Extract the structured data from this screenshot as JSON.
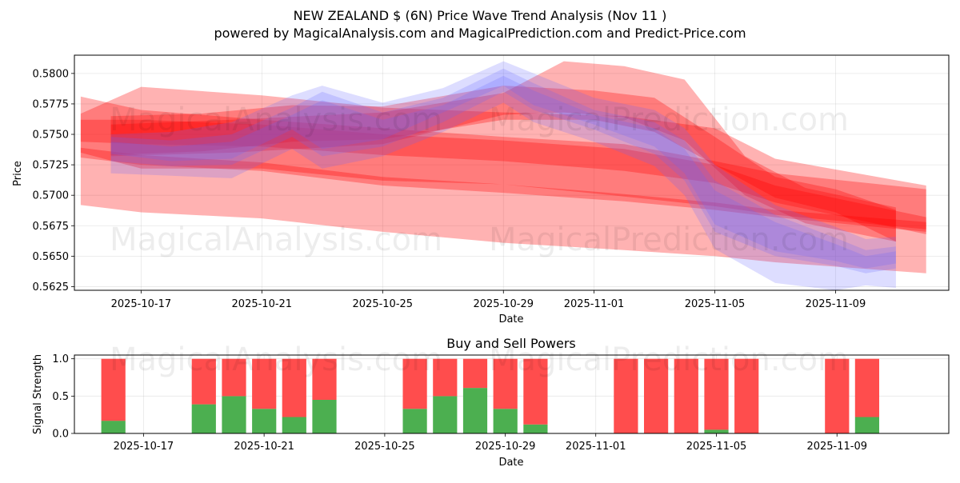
{
  "title": "NEW ZEALAND $ (6N) Price Wave Trend Analysis (Nov 11 )",
  "subtitle": "powered by MagicalAnalysis.com and MagicalPrediction.com and Predict-Price.com",
  "watermarks": [
    "MagicalAnalysis.com",
    "MagicalPrediction.com"
  ],
  "colors": {
    "buy": "#4caf50",
    "sell": "#ff4d4d",
    "red_band": "#ff0000",
    "blue_band": "#6666ff"
  },
  "chart_data": [
    {
      "type": "area",
      "title": "",
      "xlabel": "Date",
      "ylabel": "Price",
      "ylim": [
        0.5622,
        0.5815
      ],
      "xlim": [
        "2025-10-14 19:00",
        "2025-11-12 18:00"
      ],
      "yticks": [
        "0.5625",
        "0.5650",
        "0.5675",
        "0.5700",
        "0.5725",
        "0.5750",
        "0.5775",
        "0.5800"
      ],
      "xticks": [
        "2025-10-17",
        "2025-10-21",
        "2025-10-25",
        "2025-10-29",
        "2025-11-01",
        "2025-11-05",
        "2025-11-09"
      ],
      "series": [
        {
          "name": "red-band-1",
          "color": "#ff0000",
          "dates": [
            "2025-10-15",
            "2025-10-17",
            "2025-10-21",
            "2025-10-25",
            "2025-10-29",
            "2025-11-02",
            "2025-11-05",
            "2025-11-07",
            "2025-11-12"
          ],
          "lower": [
            0.5692,
            0.5686,
            0.5681,
            0.567,
            0.5661,
            0.5655,
            0.565,
            0.5645,
            0.5636
          ],
          "upper": [
            0.5767,
            0.5789,
            0.5782,
            0.5772,
            0.5768,
            0.5765,
            0.5755,
            0.573,
            0.5708
          ]
        },
        {
          "name": "red-band-2",
          "color": "#ff0000",
          "dates": [
            "2025-10-15",
            "2025-10-17",
            "2025-10-21",
            "2025-10-25",
            "2025-10-29",
            "2025-11-02",
            "2025-11-05",
            "2025-11-07",
            "2025-11-12"
          ],
          "lower": [
            0.5735,
            0.5722,
            0.5722,
            0.5712,
            0.5709,
            0.5699,
            0.5691,
            0.5684,
            0.5672
          ],
          "upper": [
            0.5781,
            0.577,
            0.5762,
            0.5755,
            0.5748,
            0.5742,
            0.5728,
            0.5718,
            0.5705
          ]
        },
        {
          "name": "red-band-3",
          "color": "#ff0000",
          "dates": [
            "2025-10-15",
            "2025-10-17",
            "2025-10-21",
            "2025-10-25",
            "2025-10-29",
            "2025-11-02",
            "2025-11-05",
            "2025-11-07",
            "2025-11-12"
          ],
          "lower": [
            0.5731,
            0.5725,
            0.572,
            0.5708,
            0.5702,
            0.5695,
            0.5688,
            0.5682,
            0.567
          ],
          "upper": [
            0.5739,
            0.5733,
            0.5727,
            0.5715,
            0.5709,
            0.5701,
            0.5694,
            0.5688,
            0.5678
          ]
        },
        {
          "name": "red-band-4",
          "color": "#ff0000",
          "dates": [
            "2025-10-15",
            "2025-10-17",
            "2025-10-21",
            "2025-10-25",
            "2025-10-29",
            "2025-11-02",
            "2025-11-05",
            "2025-11-07",
            "2025-11-12"
          ],
          "lower": [
            0.5744,
            0.5742,
            0.574,
            0.5733,
            0.5728,
            0.572,
            0.571,
            0.5694,
            0.5668
          ],
          "upper": [
            0.5762,
            0.5762,
            0.5758,
            0.575,
            0.5745,
            0.5738,
            0.5725,
            0.5708,
            0.5682
          ]
        },
        {
          "name": "red-band-5",
          "color": "#ff0000",
          "dates": [
            "2025-10-16",
            "2025-10-19",
            "2025-10-22",
            "2025-10-25",
            "2025-10-29",
            "2025-11-01",
            "2025-11-03",
            "2025-11-05",
            "2025-11-07",
            "2025-11-09",
            "2025-11-11"
          ],
          "lower": [
            0.5733,
            0.5736,
            0.5744,
            0.5746,
            0.5762,
            0.5762,
            0.5752,
            0.5725,
            0.5698,
            0.5686,
            0.5662
          ],
          "upper": [
            0.5765,
            0.5767,
            0.5774,
            0.5773,
            0.579,
            0.5786,
            0.578,
            0.5748,
            0.5715,
            0.5705,
            0.5688
          ]
        },
        {
          "name": "red-band-6",
          "color": "#ff0000",
          "dates": [
            "2025-10-16",
            "2025-10-20",
            "2025-10-25",
            "2025-10-29",
            "2025-10-31",
            "2025-11-02",
            "2025-11-04",
            "2025-11-06",
            "2025-11-08",
            "2025-11-11"
          ],
          "lower": [
            0.5732,
            0.5735,
            0.5742,
            0.5766,
            0.5768,
            0.5764,
            0.5745,
            0.57,
            0.5677,
            0.5662
          ],
          "upper": [
            0.5758,
            0.5762,
            0.5768,
            0.5784,
            0.581,
            0.5806,
            0.5795,
            0.5732,
            0.5706,
            0.569
          ]
        },
        {
          "name": "blue-band-1",
          "color": "#6666ff",
          "dates": [
            "2025-10-16",
            "2025-10-18",
            "2025-10-20",
            "2025-10-22",
            "2025-10-23",
            "2025-10-25",
            "2025-10-27",
            "2025-10-29",
            "2025-10-30",
            "2025-11-01",
            "2025-11-03",
            "2025-11-04",
            "2025-11-05",
            "2025-11-07",
            "2025-11-09",
            "2025-11-10",
            "2025-11-11"
          ],
          "lower": [
            0.5728,
            0.5724,
            0.5725,
            0.5748,
            0.5732,
            0.574,
            0.576,
            0.5785,
            0.577,
            0.5754,
            0.5734,
            0.5712,
            0.567,
            0.565,
            0.5642,
            0.5636,
            0.564
          ],
          "upper": [
            0.5748,
            0.5745,
            0.575,
            0.5772,
            0.5785,
            0.5768,
            0.578,
            0.5804,
            0.5792,
            0.577,
            0.576,
            0.5745,
            0.5712,
            0.5684,
            0.5665,
            0.5655,
            0.5658
          ]
        },
        {
          "name": "blue-band-2",
          "color": "#6666ff",
          "dates": [
            "2025-10-16",
            "2025-10-18",
            "2025-10-20",
            "2025-10-22",
            "2025-10-23",
            "2025-10-25",
            "2025-10-27",
            "2025-10-29",
            "2025-10-30",
            "2025-11-01",
            "2025-11-03",
            "2025-11-04",
            "2025-11-05",
            "2025-11-07",
            "2025-11-09",
            "2025-11-10",
            "2025-11-11"
          ],
          "lower": [
            0.5734,
            0.5728,
            0.573,
            0.5754,
            0.5738,
            0.5746,
            0.5768,
            0.579,
            0.5774,
            0.5758,
            0.574,
            0.5718,
            0.5676,
            0.5654,
            0.5646,
            0.564,
            0.5644
          ],
          "upper": [
            0.5744,
            0.574,
            0.5744,
            0.5766,
            0.5778,
            0.5762,
            0.5774,
            0.5798,
            0.5786,
            0.5766,
            0.5755,
            0.5738,
            0.5704,
            0.5678,
            0.566,
            0.565,
            0.5654
          ]
        },
        {
          "name": "blue-band-3",
          "color": "#6666ff",
          "dates": [
            "2025-10-16",
            "2025-10-18",
            "2025-10-20",
            "2025-10-22",
            "2025-10-23",
            "2025-10-25",
            "2025-10-27",
            "2025-10-29",
            "2025-10-30",
            "2025-11-01",
            "2025-11-03",
            "2025-11-04",
            "2025-11-05",
            "2025-11-07",
            "2025-11-09",
            "2025-11-10",
            "2025-11-11"
          ],
          "lower": [
            0.5718,
            0.5716,
            0.5714,
            0.5738,
            0.5722,
            0.5732,
            0.5752,
            0.5776,
            0.576,
            0.5744,
            0.5724,
            0.57,
            0.5656,
            0.5628,
            0.5622,
            0.5626,
            0.5624
          ],
          "upper": [
            0.575,
            0.5752,
            0.576,
            0.5782,
            0.579,
            0.5776,
            0.5788,
            0.581,
            0.58,
            0.578,
            0.577,
            0.5755,
            0.5725,
            0.5692,
            0.5674,
            0.5664,
            0.5666
          ]
        }
      ]
    },
    {
      "type": "bar",
      "title": "Buy and Sell Powers",
      "xlabel": "Date",
      "ylabel": "Signal Strength",
      "ylim": [
        0,
        1.05
      ],
      "yticks": [
        "0.0",
        "0.5",
        "1.0"
      ],
      "xticks": [
        "2025-10-17",
        "2025-10-21",
        "2025-10-25",
        "2025-10-29",
        "2025-11-01",
        "2025-11-05",
        "2025-11-09"
      ],
      "categories": [
        "2025-10-16",
        "2025-10-19",
        "2025-10-20",
        "2025-10-21",
        "2025-10-22",
        "2025-10-23",
        "2025-10-26",
        "2025-10-27",
        "2025-10-28",
        "2025-10-29",
        "2025-10-30",
        "2025-11-02",
        "2025-11-03",
        "2025-11-04",
        "2025-11-05",
        "2025-11-06",
        "2025-11-09",
        "2025-11-10"
      ],
      "series": [
        {
          "name": "Buy",
          "color": "#4caf50",
          "values": [
            0.17,
            0.39,
            0.5,
            0.33,
            0.22,
            0.45,
            0.33,
            0.5,
            0.61,
            0.33,
            0.12,
            0.0,
            0.0,
            0.0,
            0.05,
            0.0,
            0.0,
            0.22
          ]
        },
        {
          "name": "Sell",
          "color": "#ff4d4d",
          "values": [
            0.83,
            0.61,
            0.5,
            0.67,
            0.78,
            0.55,
            0.67,
            0.5,
            0.39,
            0.67,
            0.88,
            1.0,
            1.0,
            1.0,
            0.95,
            1.0,
            1.0,
            0.78
          ]
        }
      ]
    }
  ]
}
